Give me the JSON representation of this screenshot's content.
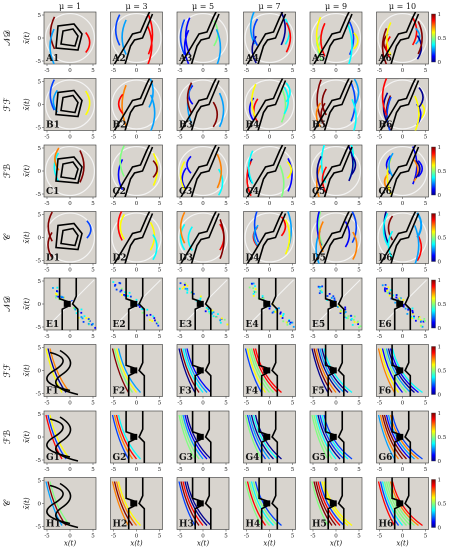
{
  "chart_data": {
    "type": "heatmap",
    "columns": [
      {
        "label": "μ = 1"
      },
      {
        "label": "μ = 3"
      },
      {
        "label": "μ = 5"
      },
      {
        "label": "μ = 7"
      },
      {
        "label": "μ = 9"
      },
      {
        "label": "μ = 10"
      }
    ],
    "rows": [
      {
        "label": "𝒩𝒟",
        "letter": "A",
        "kind": "circle",
        "colorbar": true
      },
      {
        "label": "ℱℱ",
        "letter": "B",
        "kind": "circle",
        "colorbar": false
      },
      {
        "label": "ℱℬ",
        "letter": "C",
        "kind": "circle",
        "colorbar": true
      },
      {
        "label": "𝒞",
        "letter": "D",
        "kind": "circle",
        "colorbar": true
      },
      {
        "label": "𝒩𝒟",
        "letter": "E",
        "kind": "time",
        "colorbar": true
      },
      {
        "label": "ℱℱ",
        "letter": "F",
        "kind": "time",
        "colorbar": true
      },
      {
        "label": "ℱℬ",
        "letter": "G",
        "kind": "time",
        "colorbar": true
      },
      {
        "label": "𝒞",
        "letter": "H",
        "kind": "time",
        "colorbar": true
      }
    ],
    "panel_labels": [
      [
        "A1",
        "A2",
        "A3",
        "A4",
        "A5",
        "A6"
      ],
      [
        "B1",
        "B2",
        "B3",
        "B4",
        "B5",
        "B6"
      ],
      [
        "C1",
        "C2",
        "C3",
        "C4",
        "C5",
        "C6"
      ],
      [
        "D1",
        "D2",
        "D3",
        "D4",
        "D5",
        "D6"
      ],
      [
        "E1",
        "E2",
        "E3",
        "E4",
        "E5",
        "E6"
      ],
      [
        "F1",
        "F2",
        "F3",
        "F4",
        "F5",
        "F6"
      ],
      [
        "G1",
        "G2",
        "G3",
        "G4",
        "G5",
        "G6"
      ],
      [
        "H1",
        "H2",
        "H3",
        "H4",
        "H5",
        "H6"
      ]
    ],
    "xlabel": "x(t)",
    "ylabel": "x̃(t)",
    "xlim": [
      -5,
      5
    ],
    "ylim": [
      -5,
      5
    ],
    "xticks": [
      "-5",
      "0",
      "5"
    ],
    "yticks": [
      "5",
      "0",
      "-5"
    ],
    "colorbar": {
      "min": 0,
      "max": 1,
      "ticks": [
        "1",
        "0.5",
        "0"
      ],
      "colormap": "jet"
    }
  }
}
